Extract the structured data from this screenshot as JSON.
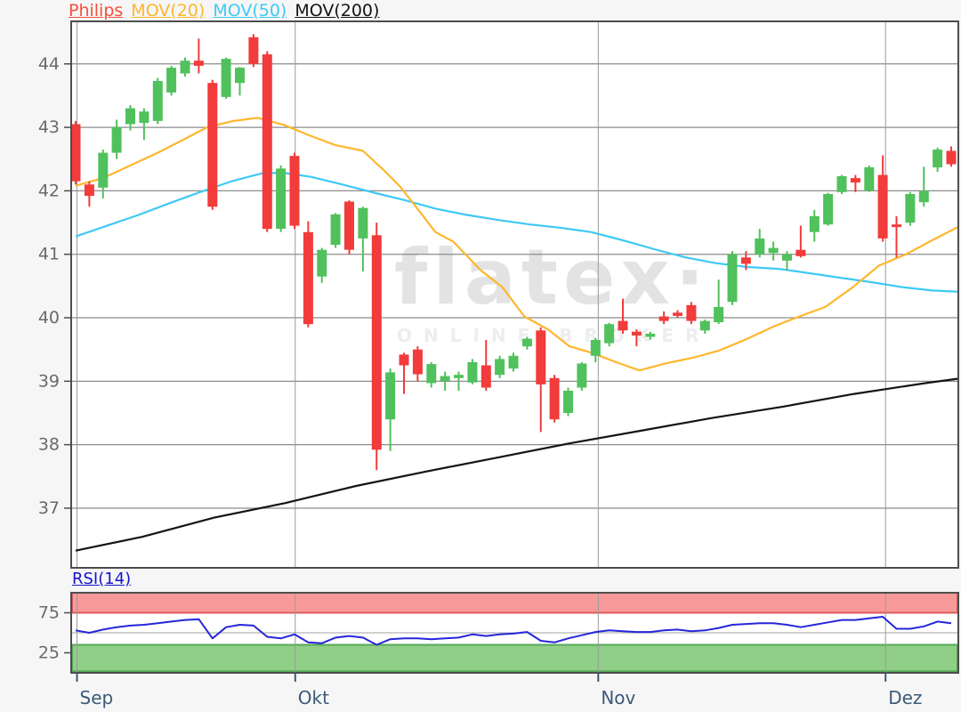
{
  "legend": {
    "items": [
      {
        "label": "Philips",
        "color": "#f2503a"
      },
      {
        "label": "MOV(20)",
        "color": "#fdb72e"
      },
      {
        "label": "MOV(50)",
        "color": "#3fc9f5"
      },
      {
        "label": "MOV(200)",
        "color": "#141414"
      }
    ]
  },
  "watermark": {
    "title": "flatex·",
    "subtitle": "ONLINE BROKER",
    "title_color": "#e3e3e3",
    "subtitle_color": "#ededed"
  },
  "main_axis": {
    "y_ticks": [
      44,
      43,
      42,
      41,
      40,
      39,
      38,
      37
    ],
    "x_ticks": [
      {
        "label": "Sep",
        "i": 0.1
      },
      {
        "label": "Okt",
        "i": 16.05
      },
      {
        "label": "Nov",
        "i": 38.2
      },
      {
        "label": "Dez",
        "i": 59.2
      }
    ],
    "label_color": "#6a6a6a",
    "month_color": "#3c5a78"
  },
  "rsi_panel": {
    "label": "RSI(14)",
    "label_color": "#1414cc",
    "line_color": "#2626d9",
    "ticks": [
      75,
      25
    ],
    "mid_line": 50,
    "band_high": {
      "from": 75,
      "to": 100,
      "fill": "#f89999",
      "edge": "#e05a5a"
    },
    "band_low": {
      "from": 2,
      "to": 35,
      "fill": "#8fcf87",
      "edge": "#57a857"
    },
    "values": [
      53,
      50,
      54,
      57,
      59,
      60,
      62,
      64,
      66,
      67,
      43,
      57,
      60,
      59,
      45,
      43,
      48,
      38,
      37,
      44,
      46,
      44,
      35,
      42,
      43,
      43,
      42,
      43,
      44,
      48,
      46,
      48,
      49,
      51,
      40,
      38,
      43,
      47,
      51,
      53,
      52,
      51,
      51,
      53,
      54,
      52,
      53,
      56,
      60,
      61,
      62,
      62,
      60,
      57,
      60,
      63,
      66,
      66,
      68,
      70,
      55,
      55,
      58,
      64,
      62
    ]
  },
  "chart_data": {
    "type": "candlestick",
    "title": "Philips",
    "xlabel": "",
    "ylabel": "",
    "x_categories": "daily candles Sep-Dez",
    "y_range": [
      36.06,
      44.67
    ],
    "grid": true,
    "up_color": "#50c15c",
    "down_color": "#f23b3b",
    "candles": [
      [
        43.05,
        43.1,
        42.1,
        42.15
      ],
      [
        42.1,
        42.15,
        41.75,
        41.92
      ],
      [
        42.05,
        42.65,
        41.88,
        42.6
      ],
      [
        42.6,
        43.12,
        42.5,
        43.0
      ],
      [
        43.05,
        43.35,
        42.95,
        43.3
      ],
      [
        43.07,
        43.3,
        42.8,
        43.25
      ],
      [
        43.1,
        43.78,
        43.05,
        43.73
      ],
      [
        43.55,
        43.97,
        43.5,
        43.94
      ],
      [
        43.85,
        44.1,
        43.8,
        44.05
      ],
      [
        44.05,
        44.4,
        43.85,
        43.97
      ],
      [
        43.7,
        43.75,
        41.7,
        41.75
      ],
      [
        43.48,
        44.1,
        43.45,
        44.08
      ],
      [
        43.7,
        43.95,
        43.5,
        43.94
      ],
      [
        44.42,
        44.47,
        43.95,
        44.0
      ],
      [
        44.15,
        44.2,
        41.35,
        41.4
      ],
      [
        41.4,
        42.4,
        41.35,
        42.35
      ],
      [
        42.55,
        42.6,
        41.4,
        41.45
      ],
      [
        41.35,
        41.52,
        39.85,
        39.9
      ],
      [
        40.65,
        41.1,
        40.55,
        41.07
      ],
      [
        41.15,
        41.65,
        41.1,
        41.63
      ],
      [
        41.83,
        41.85,
        41.0,
        41.07
      ],
      [
        41.25,
        41.75,
        40.73,
        41.73
      ],
      [
        41.3,
        41.5,
        37.6,
        37.92
      ],
      [
        38.4,
        39.2,
        37.9,
        39.14
      ],
      [
        39.42,
        39.45,
        38.8,
        39.25
      ],
      [
        39.5,
        39.55,
        39.0,
        39.11
      ],
      [
        38.97,
        39.3,
        38.9,
        39.27
      ],
      [
        39.0,
        39.15,
        38.85,
        39.08
      ],
      [
        39.05,
        39.15,
        38.85,
        39.1
      ],
      [
        38.98,
        39.35,
        38.95,
        39.3
      ],
      [
        39.25,
        39.65,
        38.85,
        38.9
      ],
      [
        39.1,
        39.4,
        39.05,
        39.35
      ],
      [
        39.2,
        39.45,
        39.15,
        39.4
      ],
      [
        39.55,
        39.7,
        39.5,
        39.67
      ],
      [
        39.8,
        39.85,
        38.2,
        38.95
      ],
      [
        39.05,
        39.1,
        38.35,
        38.4
      ],
      [
        38.5,
        38.9,
        38.45,
        38.85
      ],
      [
        38.9,
        39.3,
        38.85,
        39.28
      ],
      [
        39.4,
        39.68,
        39.3,
        39.65
      ],
      [
        39.6,
        39.92,
        39.55,
        39.9
      ],
      [
        39.95,
        40.3,
        39.75,
        39.8
      ],
      [
        39.78,
        39.82,
        39.55,
        39.72
      ],
      [
        39.7,
        39.78,
        39.65,
        39.75
      ],
      [
        40.02,
        40.1,
        39.9,
        39.95
      ],
      [
        40.08,
        40.12,
        40.0,
        40.03
      ],
      [
        40.2,
        40.25,
        39.9,
        39.95
      ],
      [
        39.8,
        39.97,
        39.75,
        39.95
      ],
      [
        39.93,
        40.6,
        39.9,
        40.17
      ],
      [
        40.25,
        41.05,
        40.2,
        41.0
      ],
      [
        40.95,
        41.05,
        40.75,
        40.85
      ],
      [
        41.0,
        41.4,
        40.95,
        41.25
      ],
      [
        41.02,
        41.2,
        40.9,
        41.1
      ],
      [
        40.9,
        41.05,
        40.75,
        41.0
      ],
      [
        41.07,
        41.45,
        40.95,
        40.97
      ],
      [
        41.35,
        41.7,
        41.2,
        41.6
      ],
      [
        41.47,
        41.97,
        41.45,
        41.95
      ],
      [
        41.98,
        42.25,
        41.95,
        42.23
      ],
      [
        42.2,
        42.25,
        41.98,
        42.13
      ],
      [
        42.0,
        42.4,
        41.98,
        42.37
      ],
      [
        42.25,
        42.56,
        41.2,
        41.25
      ],
      [
        41.47,
        41.6,
        40.95,
        41.43
      ],
      [
        41.5,
        41.98,
        41.45,
        41.95
      ],
      [
        41.82,
        42.38,
        41.75,
        42.0
      ],
      [
        42.37,
        42.68,
        42.3,
        42.65
      ],
      [
        42.63,
        42.7,
        42.38,
        42.42
      ]
    ],
    "series": [
      {
        "name": "MOV(20)",
        "color": "#fdb72e",
        "points": [
          [
            0,
            42.08
          ],
          [
            2,
            42.2
          ],
          [
            4,
            42.4
          ],
          [
            6,
            42.6
          ],
          [
            8,
            42.82
          ],
          [
            9.6,
            43.0
          ],
          [
            11.5,
            43.1
          ],
          [
            13.3,
            43.15
          ],
          [
            15.2,
            43.04
          ],
          [
            17,
            42.88
          ],
          [
            19,
            42.72
          ],
          [
            21,
            42.63
          ],
          [
            22.4,
            42.35
          ],
          [
            23.7,
            42.07
          ],
          [
            24.8,
            41.77
          ],
          [
            26.3,
            41.35
          ],
          [
            27.6,
            41.2
          ],
          [
            29.6,
            40.75
          ],
          [
            31.2,
            40.48
          ],
          [
            32.8,
            40.02
          ],
          [
            34.5,
            39.82
          ],
          [
            36.1,
            39.55
          ],
          [
            37.7,
            39.45
          ],
          [
            39.5,
            39.3
          ],
          [
            41.2,
            39.17
          ],
          [
            43.1,
            39.28
          ],
          [
            45.1,
            39.37
          ],
          [
            47,
            39.48
          ],
          [
            49,
            39.66
          ],
          [
            51,
            39.86
          ],
          [
            52.9,
            40.02
          ],
          [
            54.8,
            40.17
          ],
          [
            56.8,
            40.48
          ],
          [
            58.7,
            40.82
          ],
          [
            60.7,
            41.0
          ],
          [
            62.6,
            41.22
          ],
          [
            64.5,
            41.43
          ]
        ]
      },
      {
        "name": "MOV(50)",
        "color": "#3fc9f5",
        "points": [
          [
            0,
            41.28
          ],
          [
            2.3,
            41.45
          ],
          [
            4.6,
            41.62
          ],
          [
            6.8,
            41.8
          ],
          [
            9.1,
            41.98
          ],
          [
            11.4,
            42.15
          ],
          [
            13.7,
            42.28
          ],
          [
            15.3,
            42.28
          ],
          [
            17.2,
            42.22
          ],
          [
            19.5,
            42.1
          ],
          [
            21.8,
            41.97
          ],
          [
            24.1,
            41.85
          ],
          [
            26.3,
            41.72
          ],
          [
            28.6,
            41.62
          ],
          [
            30.9,
            41.54
          ],
          [
            33.2,
            41.47
          ],
          [
            35.4,
            41.42
          ],
          [
            37.7,
            41.35
          ],
          [
            40,
            41.22
          ],
          [
            42.3,
            41.08
          ],
          [
            44.6,
            40.95
          ],
          [
            46.8,
            40.86
          ],
          [
            49.1,
            40.8
          ],
          [
            51.4,
            40.77
          ],
          [
            53.7,
            40.7
          ],
          [
            55.9,
            40.63
          ],
          [
            58.2,
            40.56
          ],
          [
            60.5,
            40.48
          ],
          [
            62.6,
            40.43
          ],
          [
            64.5,
            40.41
          ]
        ]
      },
      {
        "name": "MOV(200)",
        "color": "#141414",
        "points": [
          [
            0,
            36.33
          ],
          [
            4.9,
            36.55
          ],
          [
            10.1,
            36.85
          ],
          [
            15.3,
            37.08
          ],
          [
            20.5,
            37.35
          ],
          [
            25.7,
            37.58
          ],
          [
            30.9,
            37.8
          ],
          [
            36.1,
            38.02
          ],
          [
            41.3,
            38.22
          ],
          [
            46.5,
            38.42
          ],
          [
            51.7,
            38.6
          ],
          [
            56.9,
            38.8
          ],
          [
            62.1,
            38.97
          ],
          [
            64.5,
            39.04
          ]
        ]
      }
    ]
  }
}
